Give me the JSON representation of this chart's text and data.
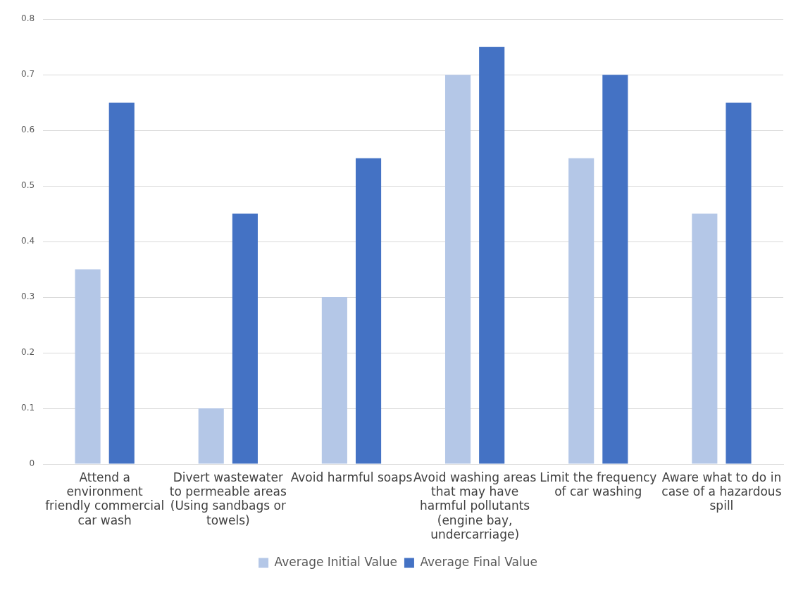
{
  "chart_data": {
    "type": "bar",
    "categories": [
      "Attend a environment friendly commercial car wash",
      "Divert wastewater to permeable areas (Using sandbags or towels)",
      "Avoid harmful soaps",
      "Avoid washing areas that may have harmful pollutants (engine bay, undercarriage)",
      "Limit the frequency of car washing",
      "Aware what to do in case of a hazardous spill"
    ],
    "series": [
      {
        "name": "Average Initial Value",
        "color": "#b4c7e7",
        "values": [
          0.35,
          0.1,
          0.3,
          0.7,
          0.55,
          0.45
        ]
      },
      {
        "name": "Average Final Value",
        "color": "#4472c4",
        "values": [
          0.65,
          0.45,
          0.55,
          0.75,
          0.7,
          0.65
        ]
      }
    ],
    "ylim": [
      0,
      0.8
    ],
    "yticks": [
      0,
      0.1,
      0.2,
      0.3,
      0.4,
      0.5,
      0.6,
      0.7,
      0.8
    ],
    "grid": "y",
    "legend": "bottom"
  }
}
